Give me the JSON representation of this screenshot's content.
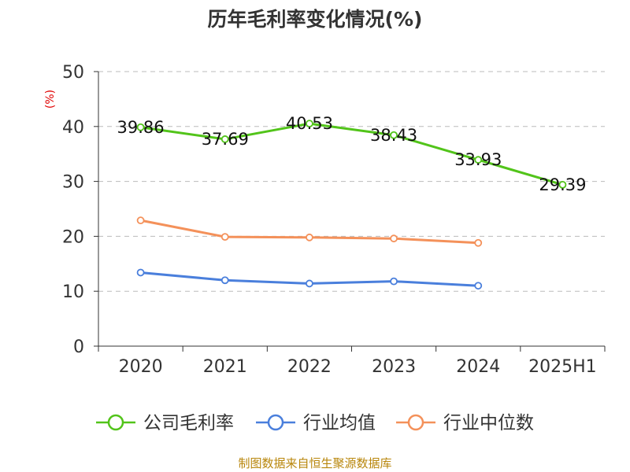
{
  "chart_data": {
    "type": "line",
    "title": "历年毛利率变化情况(%)",
    "ylabel": "(%)",
    "xlabel": "",
    "categories": [
      "2020",
      "2021",
      "2022",
      "2023",
      "2024",
      "2025H1"
    ],
    "ylim": [
      0,
      50
    ],
    "yticks": [
      0,
      10,
      20,
      30,
      40,
      50
    ],
    "grid": "horizontal dashed",
    "legend_position": "bottom",
    "series": [
      {
        "name": "公司毛利率",
        "color": "#52c41a",
        "show_labels": true,
        "values": [
          39.86,
          37.69,
          40.53,
          38.43,
          33.93,
          29.39
        ],
        "labels": [
          "39.86",
          "37.69",
          "40.53",
          "38.43",
          "33.93",
          "29.39"
        ]
      },
      {
        "name": "行业均值",
        "color": "#4a7fdc",
        "show_labels": false,
        "values": [
          13.4,
          12.0,
          11.4,
          11.8,
          11.0,
          null
        ]
      },
      {
        "name": "行业中位数",
        "color": "#f4915a",
        "show_labels": false,
        "values": [
          22.9,
          19.9,
          19.8,
          19.6,
          18.8,
          null
        ]
      }
    ]
  },
  "source_text": "制图数据来自恒生聚源数据库"
}
